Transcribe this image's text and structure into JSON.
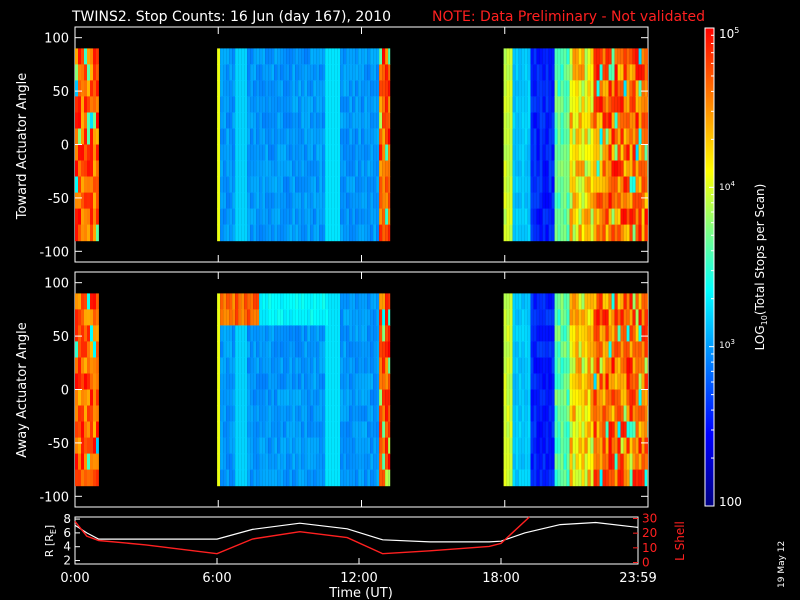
{
  "chart_data": [
    {
      "type": "heatmap",
      "title": "TWINS2. Stop Counts: 16 Jun (day 167), 2010",
      "note": "NOTE: Data Preliminary - Not validated",
      "ylabel": "Toward Actuator Angle",
      "ylim": [
        -110,
        110
      ],
      "yticks": [
        100,
        50,
        0,
        -50,
        -100
      ],
      "xlim": [
        0,
        24
      ],
      "data_yrange": [
        -90,
        90
      ],
      "segments": [
        {
          "start": 0.0,
          "end": 1.0,
          "level": "high"
        },
        {
          "start": 5.95,
          "end": 13.2,
          "level": "low"
        },
        {
          "start": 17.95,
          "end": 24.0,
          "level": "mixed"
        }
      ]
    },
    {
      "type": "heatmap",
      "ylabel": "Away Actuator Angle",
      "ylim": [
        -110,
        110
      ],
      "yticks": [
        100,
        50,
        0,
        -50,
        -100
      ],
      "xlim": [
        0,
        24
      ],
      "data_yrange": [
        -90,
        90
      ],
      "segments": [
        {
          "start": 0.0,
          "end": 1.0,
          "level": "high"
        },
        {
          "start": 5.95,
          "end": 13.2,
          "level": "low"
        },
        {
          "start": 17.95,
          "end": 24.0,
          "level": "mixed"
        }
      ]
    },
    {
      "type": "line",
      "xlabel": "Time (UT)",
      "ylabel_left": "R [RE]",
      "ylabel_right": "L Shell",
      "xticks": [
        "0:00",
        "6:00",
        "12:00",
        "18:00",
        "23:59"
      ],
      "xtick_values": [
        0,
        6,
        12,
        18,
        23.983
      ],
      "yticks_left": [
        "8",
        "6",
        "4",
        "2"
      ],
      "yticks_left_values": [
        8,
        6,
        4,
        2
      ],
      "ylim_left": [
        1.5,
        8.3
      ],
      "yticks_right": [
        "30",
        "20",
        "10",
        "0"
      ],
      "yticks_right_values": [
        30,
        20,
        10,
        0
      ],
      "ylim_right": [
        -1,
        31
      ],
      "series": [
        {
          "name": "R",
          "color": "#ffffff",
          "x": [
            0,
            0.5,
            1.0,
            3,
            6.0,
            7.5,
            9.5,
            11.5,
            13.0,
            15,
            17.5,
            18.0,
            19,
            20.5,
            22,
            23.983
          ],
          "y": [
            7.1,
            6.0,
            5.1,
            5.1,
            5.1,
            6.5,
            7.4,
            6.6,
            5.0,
            4.7,
            4.7,
            4.8,
            6.0,
            7.2,
            7.5,
            6.8
          ]
        },
        {
          "name": "L Shell",
          "color": "#ff2020",
          "x": [
            0,
            0.5,
            1.0,
            3,
            6.0,
            7.5,
            9.5,
            11.5,
            13.0,
            15,
            17.5,
            18.0,
            19.2
          ],
          "y": [
            28,
            18,
            15,
            12,
            6,
            16,
            21,
            17,
            6,
            8,
            11,
            13,
            31
          ]
        }
      ]
    }
  ],
  "colorbar": {
    "label": "LOG10(Total Stops per Scan)",
    "ticks": [
      "10^5",
      "10^4",
      "10^3",
      "100"
    ],
    "tick_values": [
      100000,
      10000,
      1000,
      100
    ],
    "range": [
      100,
      100000
    ],
    "tick_texts": {
      "t5": "10",
      "e5": "5",
      "t4": "10",
      "e4": "4",
      "t3": "10",
      "e3": "3",
      "t2": "100"
    },
    "label_parts": {
      "pre": "LOG",
      "sub": "10",
      "post": "(Total Stops per Scan)"
    }
  },
  "y_label_R": {
    "pre": "R [R",
    "sub": "E",
    "post": "]"
  },
  "date_stamp": "19 May 12"
}
